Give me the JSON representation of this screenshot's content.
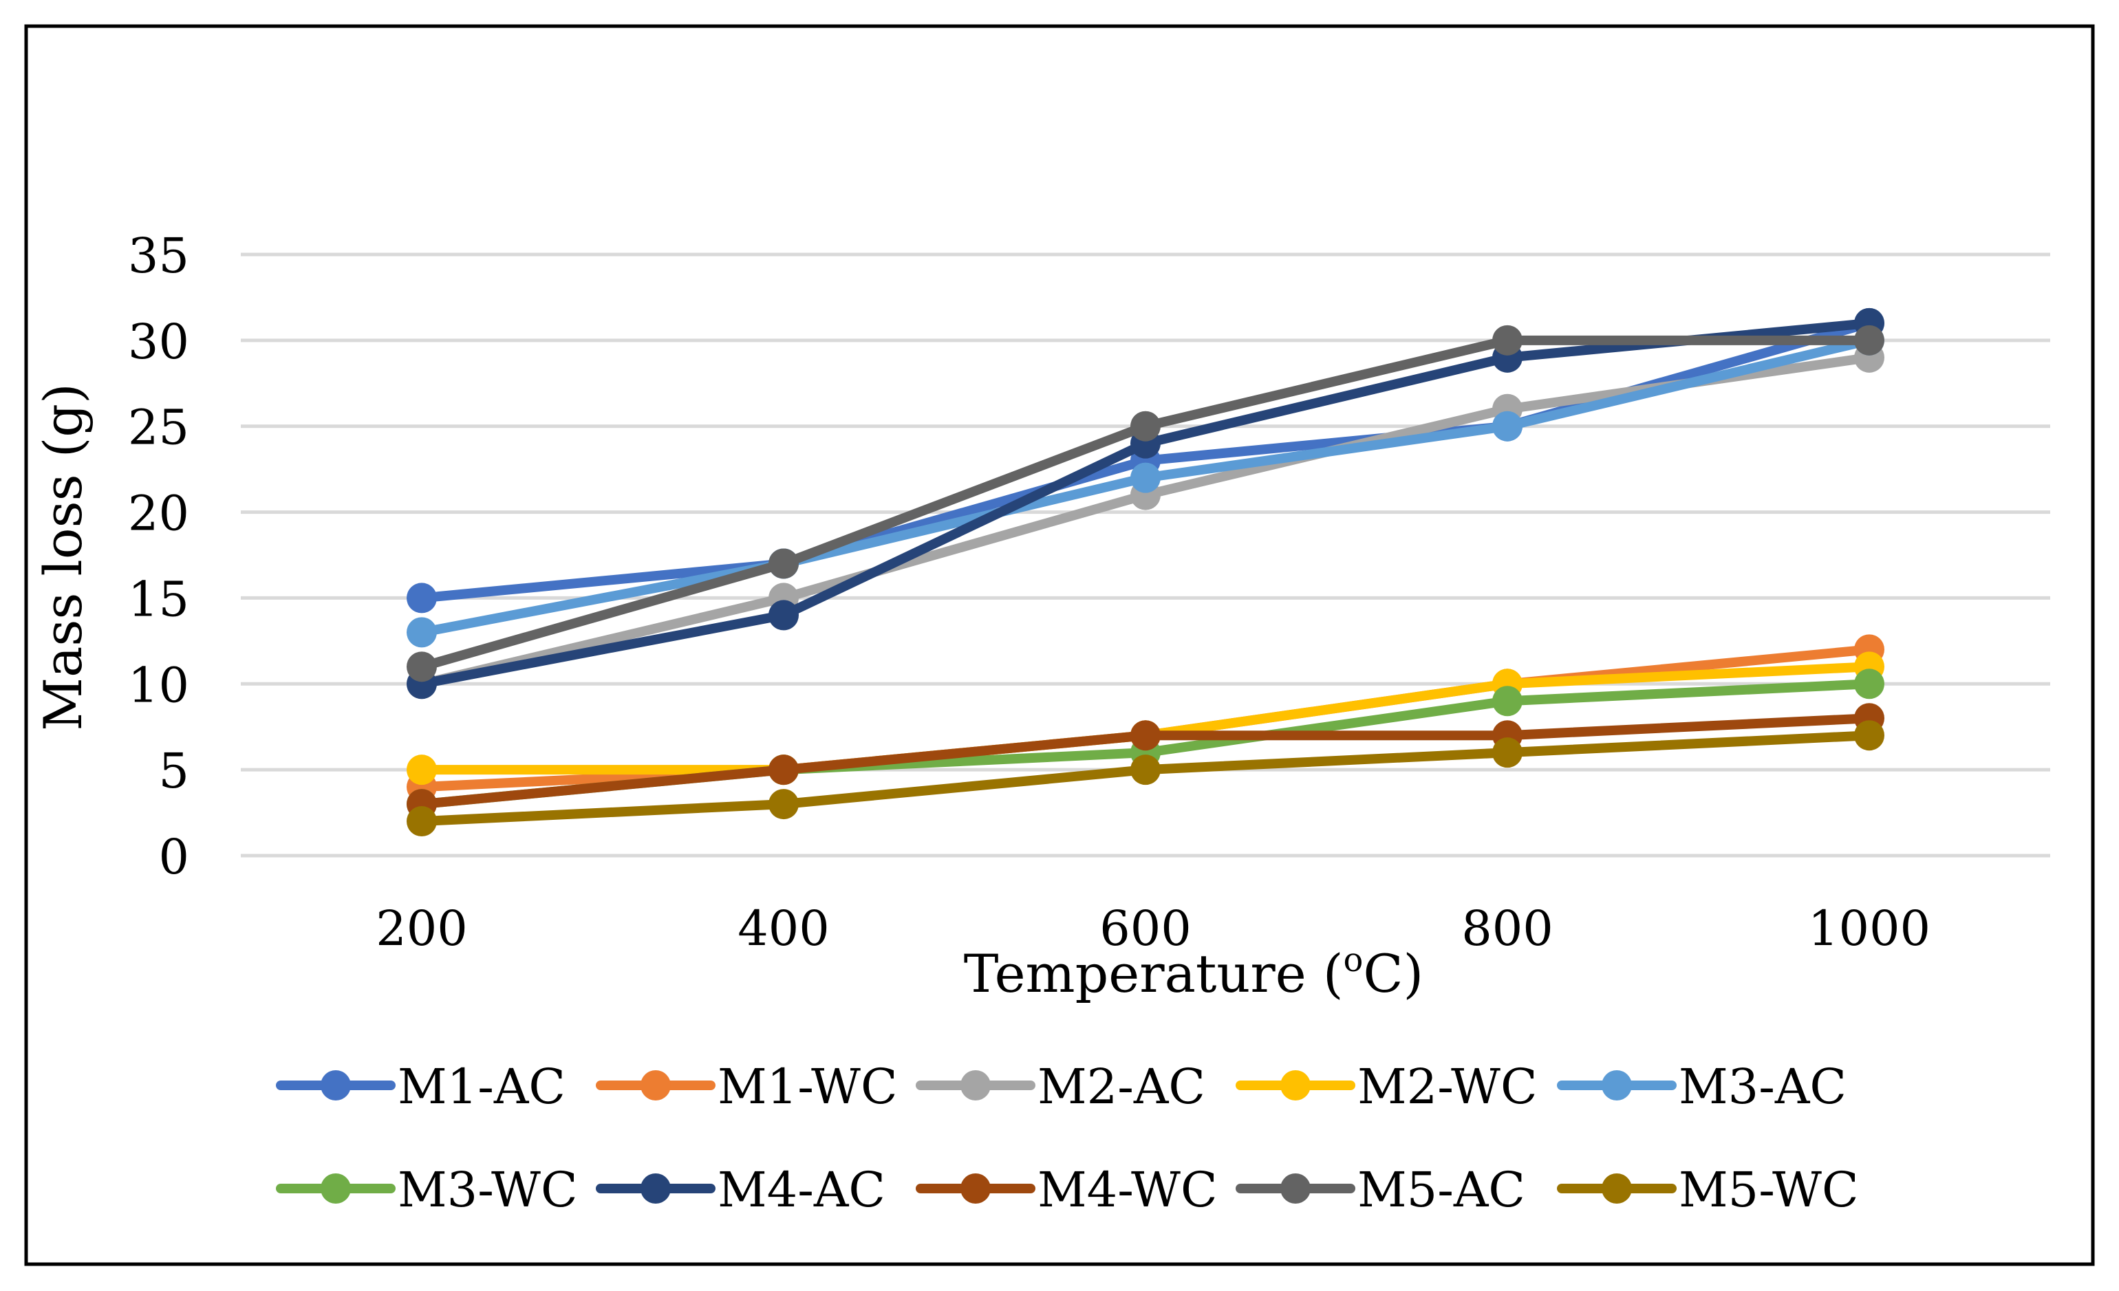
{
  "chart_data": {
    "type": "line",
    "title": "",
    "xlabel": "Temperature (oC)",
    "xlabel_main": "Temperature (",
    "xlabel_sup": "o",
    "xlabel_tail": "C)",
    "ylabel": "Mass loss (g)",
    "categories": [
      "200",
      "400",
      "600",
      "800",
      "1000"
    ],
    "ylim": [
      0,
      35
    ],
    "yticks": [
      "0",
      "5",
      "10",
      "15",
      "20",
      "25",
      "30",
      "35"
    ],
    "grid": true,
    "legend_position": "bottom",
    "series": [
      {
        "name": "M1-AC",
        "color": "#4472C4",
        "values": [
          15,
          17,
          23,
          25,
          31
        ]
      },
      {
        "name": "M1-WC",
        "color": "#ED7D31",
        "values": [
          4,
          5,
          7,
          10,
          12
        ]
      },
      {
        "name": "M2-AC",
        "color": "#A5A5A5",
        "values": [
          10,
          15,
          21,
          26,
          29
        ]
      },
      {
        "name": "M2-WC",
        "color": "#FFC000",
        "values": [
          5,
          5,
          7,
          10,
          11
        ]
      },
      {
        "name": "M3-AC",
        "color": "#5B9BD5",
        "values": [
          13,
          17,
          22,
          25,
          30
        ]
      },
      {
        "name": "M3-WC",
        "color": "#70AD47",
        "values": [
          3,
          5,
          6,
          9,
          10
        ]
      },
      {
        "name": "M4-AC",
        "color": "#264478",
        "values": [
          10,
          14,
          24,
          29,
          31
        ]
      },
      {
        "name": "M4-WC",
        "color": "#9E480E",
        "values": [
          3,
          5,
          7,
          7,
          8
        ]
      },
      {
        "name": "M5-AC",
        "color": "#636363",
        "values": [
          11,
          17,
          25,
          30,
          30
        ]
      },
      {
        "name": "M5-WC",
        "color": "#997300",
        "values": [
          2,
          3,
          5,
          6,
          7
        ]
      }
    ]
  }
}
